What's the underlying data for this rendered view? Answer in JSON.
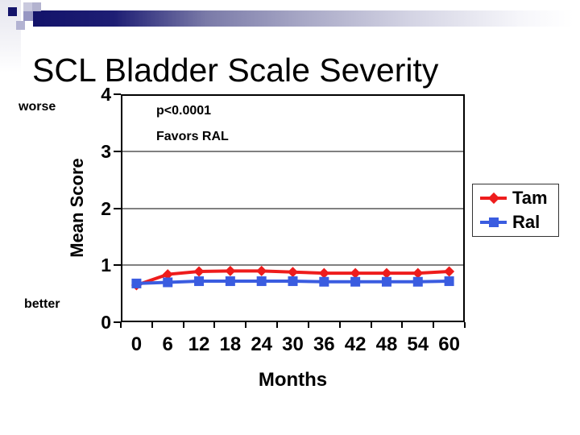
{
  "slide": {
    "title": "SCL Bladder Scale Severity",
    "decoration": {
      "bar_gradient_start": "#13136a",
      "bar_gradient_end": "#ffffff",
      "square_colors": [
        "#13136a",
        "#c9c9de",
        "#b3b3cf",
        "#9797c3",
        "#b3b3d2"
      ]
    }
  },
  "chart_data": {
    "type": "line",
    "title": "SCL Bladder Scale Severity",
    "categories": [
      "0",
      "6",
      "12",
      "18",
      "24",
      "30",
      "36",
      "42",
      "48",
      "54",
      "60"
    ],
    "series": [
      {
        "name": "Tam",
        "color": "#ee1c1c",
        "marker": "diamond",
        "values": [
          0.65,
          0.84,
          0.89,
          0.9,
          0.9,
          0.88,
          0.86,
          0.86,
          0.86,
          0.86,
          0.89
        ]
      },
      {
        "name": "Ral",
        "color": "#3a5ce0",
        "marker": "square",
        "values": [
          0.68,
          0.7,
          0.72,
          0.72,
          0.72,
          0.72,
          0.71,
          0.71,
          0.71,
          0.71,
          0.72
        ]
      }
    ],
    "xlabel": "Months",
    "ylabel": "Mean Score",
    "ylim": [
      0,
      4
    ],
    "yticks": [
      0,
      1,
      2,
      3,
      4
    ],
    "grid": "horizontal",
    "gridline_color": "#808080",
    "legend_position": "right-outside",
    "annotations": {
      "p_value": "p<0.0001",
      "favors": "Favors RAL"
    },
    "axis_notes": {
      "top": "worse",
      "bottom": "better"
    }
  }
}
